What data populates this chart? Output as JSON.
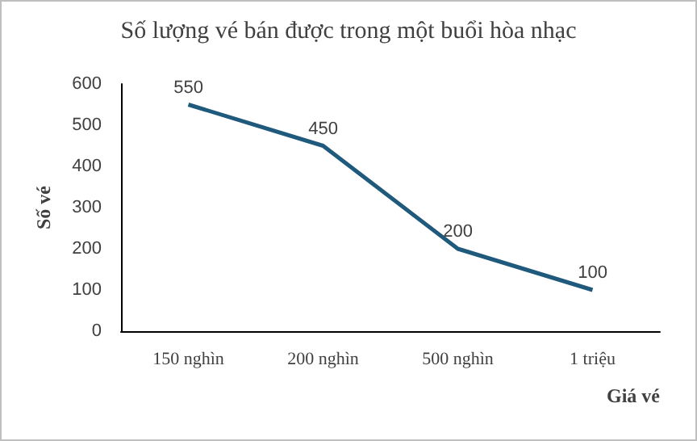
{
  "chart_data": {
    "type": "line",
    "title": "Số lượng vé bán được trong một buổi hòa nhạc",
    "xlabel": "Giá vé",
    "ylabel": "Số vé",
    "categories": [
      "150 nghìn",
      "200 nghìn",
      "500 nghìn",
      "1 triệu"
    ],
    "series": [
      {
        "color": "#1f5a7d",
        "values": [
          550,
          450,
          200,
          100
        ]
      }
    ],
    "ylim": [
      0,
      600
    ],
    "yticks": [
      0,
      100,
      200,
      300,
      400,
      500,
      600
    ],
    "grid": false,
    "data_labels": true,
    "marker": "none",
    "line_style": "solid"
  }
}
